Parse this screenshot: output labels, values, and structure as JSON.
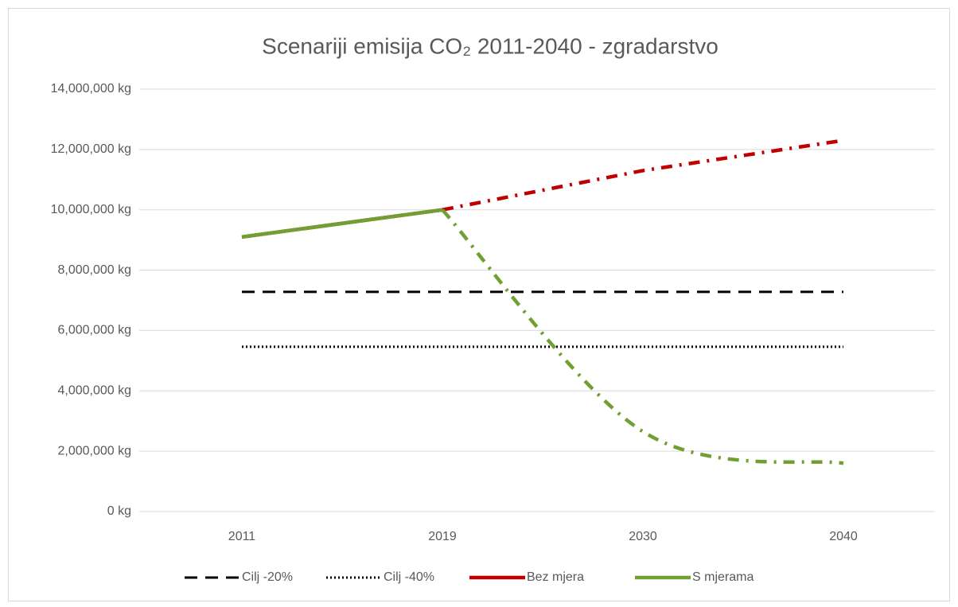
{
  "chart_data": {
    "type": "line",
    "title": "Scenariji emisija CO₂ 2011-2040 - zgradarstvo",
    "categories": [
      "2011",
      "2019",
      "2030",
      "2040"
    ],
    "series": [
      {
        "name": "Cilj -20%",
        "color": "#000000",
        "line_style": "dashed",
        "values": [
          7280000,
          7280000,
          7280000,
          7280000
        ]
      },
      {
        "name": "Cilj -40%",
        "color": "#000000",
        "line_style": "dotted",
        "values": [
          5460000,
          5460000,
          5460000,
          5460000
        ]
      },
      {
        "name": "Bez mjera",
        "color": "#c00000",
        "line_style": "solid-then-dashdot",
        "values": [
          9100000,
          10000000,
          11300000,
          12300000
        ]
      },
      {
        "name": "S mjerama",
        "color": "#70a033",
        "line_style": "solid-then-dashdot",
        "smooth": true,
        "values": [
          9100000,
          10000000,
          2650000,
          1600000
        ]
      }
    ],
    "ylim": [
      0,
      14000000
    ],
    "yticks": [
      {
        "value": 0,
        "label": "0 kg"
      },
      {
        "value": 2000000,
        "label": "2,000,000 kg"
      },
      {
        "value": 4000000,
        "label": "4,000,000 kg"
      },
      {
        "value": 6000000,
        "label": "6,000,000 kg"
      },
      {
        "value": 8000000,
        "label": "8,000,000 kg"
      },
      {
        "value": 10000000,
        "label": "10,000,000 kg"
      },
      {
        "value": 12000000,
        "label": "12,000,000 kg"
      },
      {
        "value": 14000000,
        "label": "14,000,000 kg"
      }
    ],
    "grid": true,
    "legend": "bottom"
  }
}
